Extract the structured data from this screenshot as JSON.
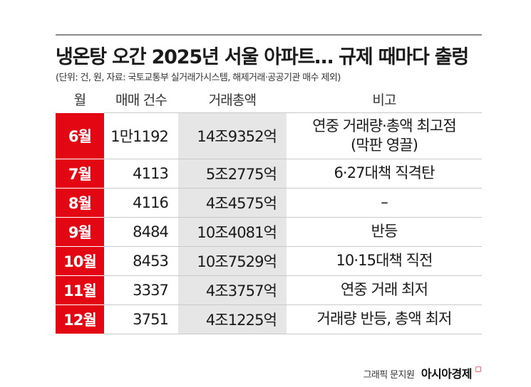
{
  "title": "냉온탕 오간 2025년 서울 아파트… 규제 때마다 출렁",
  "subtitle": "(단위: 건, 원, 자료: 국토교통부 실거래가시스템, 해제거래·공공기관 매수 제외)",
  "headers": [
    "월",
    "매매 건수",
    "거래총액",
    "비고"
  ],
  "rows": [
    {
      "month": "6월",
      "count": "1만1192",
      "amount": "14조9352억",
      "note": "연중 거래량·총액 최고점",
      "note2": "(막판 영끌)"
    },
    {
      "month": "7월",
      "count": "4113",
      "amount": "5조2775억",
      "note": "6·27대책 직격탄"
    },
    {
      "month": "8월",
      "count": "4116",
      "amount": "4조4575억",
      "note": "–"
    },
    {
      "month": "9월",
      "count": "8484",
      "amount": "10조4081억",
      "note": "반등"
    },
    {
      "month": "10월",
      "count": "8453",
      "amount": "10조7529억",
      "note": "10·15대책 직전"
    },
    {
      "month": "11월",
      "count": "3337",
      "amount": "4조3757억",
      "note": "연중 거래 최저"
    },
    {
      "month": "12월",
      "count": "3751",
      "amount": "4조1225억",
      "note": "거래량 반등, 총액 최저"
    }
  ],
  "credit": {
    "byline": "그래픽 문지원",
    "brand": "아시아경제",
    "brand_mark": "◻"
  },
  "colors": {
    "month_bg": "#e30613",
    "amount_bg": "#e6e6e6"
  }
}
